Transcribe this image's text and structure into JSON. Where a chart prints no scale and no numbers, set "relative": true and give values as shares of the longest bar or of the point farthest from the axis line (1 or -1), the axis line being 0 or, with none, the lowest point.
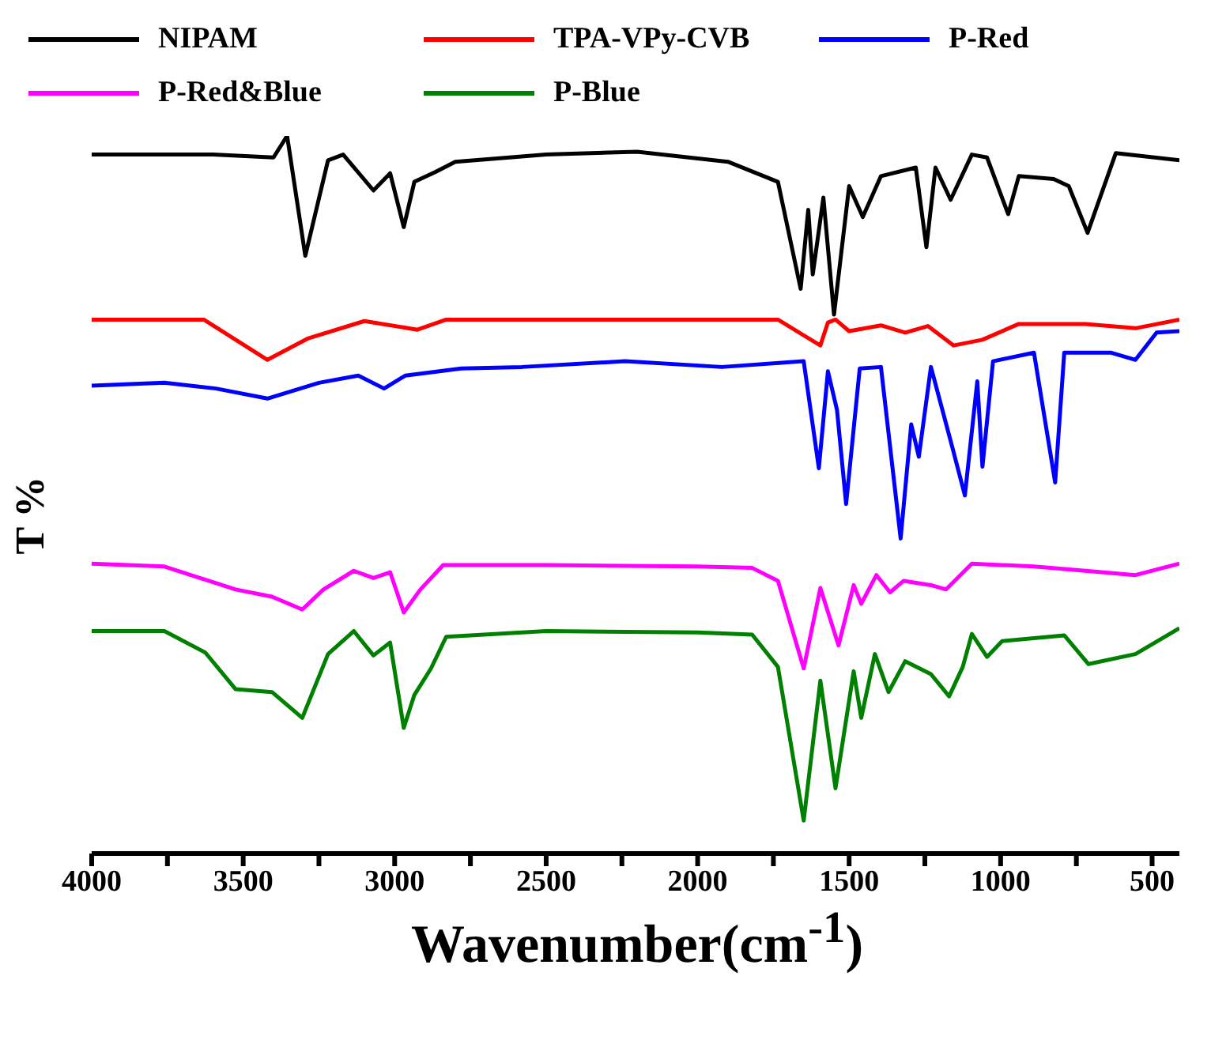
{
  "chart_data": {
    "type": "line",
    "relative": true,
    "xlabel": "Wavenumber(cm$^{-1}$)",
    "ylabel": "T %",
    "legend": "top",
    "marker": "none",
    "line_style": "solid",
    "xlim": [
      4000,
      410
    ],
    "xticks": [
      4000,
      {
        "value": 3750,
        "label": null
      },
      3500,
      {
        "value": 3250,
        "label": null
      },
      3000,
      {
        "value": 2750,
        "label": null
      },
      2500,
      {
        "value": 2250,
        "label": null
      },
      2000,
      {
        "value": 1750,
        "label": null
      },
      1500,
      {
        "value": 1250,
        "label": null
      },
      1000,
      {
        "value": 750,
        "label": null
      },
      500
    ],
    "series": [
      {
        "name": "NIPAM",
        "color": "#000000",
        "x": [
          4000,
          3800,
          3600,
          3400,
          3355,
          3295,
          3220,
          3170,
          3070,
          3015,
          2970,
          2935,
          2865,
          2800,
          2500,
          2200,
          1900,
          1735,
          1660,
          1635,
          1620,
          1585,
          1550,
          1500,
          1455,
          1395,
          1280,
          1245,
          1215,
          1165,
          1095,
          1045,
          975,
          940,
          825,
          775,
          713,
          620,
          410
        ],
        "values": [
          0.974,
          0.974,
          0.974,
          0.97,
          1,
          0.833,
          0.966,
          0.974,
          0.924,
          0.948,
          0.873,
          0.936,
          0.95,
          0.964,
          0.974,
          0.978,
          0.964,
          0.936,
          0.787,
          0.897,
          0.807,
          0.914,
          0.751,
          0.93,
          0.887,
          0.944,
          0.956,
          0.845,
          0.956,
          0.911,
          0.974,
          0.97,
          0.891,
          0.944,
          0.94,
          0.93,
          0.865,
          0.976,
          0.966
        ]
      },
      {
        "name": "TPA-VPy-CVB",
        "color": "#ff0000",
        "x": [
          4000,
          3800,
          3630,
          3420,
          3285,
          3100,
          2925,
          2830,
          2500,
          2000,
          1735,
          1595,
          1570,
          1545,
          1500,
          1395,
          1315,
          1240,
          1155,
          1060,
          940,
          720,
          555,
          410
        ],
        "values": [
          0.744,
          0.744,
          0.744,
          0.688,
          0.718,
          0.742,
          0.73,
          0.744,
          0.744,
          0.744,
          0.744,
          0.708,
          0.74,
          0.744,
          0.728,
          0.736,
          0.726,
          0.735,
          0.708,
          0.716,
          0.738,
          0.738,
          0.732,
          0.744
        ]
      },
      {
        "name": "P-Red",
        "color": "#0000ff",
        "x": [
          4000,
          3760,
          3590,
          3420,
          3250,
          3120,
          3035,
          2965,
          2780,
          2580,
          2240,
          1920,
          1650,
          1600,
          1570,
          1540,
          1510,
          1465,
          1395,
          1330,
          1295,
          1270,
          1230,
          1160,
          1118,
          1077,
          1060,
          1025,
          890,
          820,
          790,
          637,
          555,
          485,
          410
        ],
        "values": [
          0.652,
          0.656,
          0.648,
          0.634,
          0.656,
          0.666,
          0.648,
          0.666,
          0.676,
          0.678,
          0.686,
          0.678,
          0.686,
          0.537,
          0.672,
          0.618,
          0.487,
          0.676,
          0.678,
          0.439,
          0.598,
          0.553,
          0.678,
          0.567,
          0.499,
          0.658,
          0.539,
          0.686,
          0.698,
          0.517,
          0.698,
          0.698,
          0.688,
          0.726,
          0.728
        ]
      },
      {
        "name": "P-Red&Blue",
        "color": "#ff00ff",
        "x": [
          4000,
          3760,
          3525,
          3405,
          3305,
          3235,
          3135,
          3070,
          3015,
          2970,
          2915,
          2840,
          2500,
          2000,
          1820,
          1735,
          1650,
          1595,
          1535,
          1485,
          1460,
          1410,
          1365,
          1320,
          1230,
          1180,
          1095,
          890,
          720,
          555,
          410
        ],
        "values": [
          0.404,
          0.4,
          0.368,
          0.358,
          0.34,
          0.368,
          0.394,
          0.384,
          0.392,
          0.336,
          0.368,
          0.402,
          0.402,
          0.4,
          0.398,
          0.38,
          0.258,
          0.37,
          0.29,
          0.374,
          0.348,
          0.388,
          0.364,
          0.38,
          0.374,
          0.368,
          0.404,
          0.4,
          0.394,
          0.388,
          0.404
        ]
      },
      {
        "name": "P-Blue",
        "color": "#008000",
        "x": [
          4000,
          3760,
          3625,
          3525,
          3405,
          3305,
          3220,
          3135,
          3070,
          3015,
          2970,
          2935,
          2880,
          2830,
          2500,
          2000,
          1820,
          1735,
          1650,
          1595,
          1545,
          1485,
          1460,
          1415,
          1370,
          1315,
          1230,
          1170,
          1125,
          1095,
          1045,
          995,
          790,
          710,
          555,
          410
        ],
        "values": [
          0.31,
          0.31,
          0.28,
          0.229,
          0.225,
          0.189,
          0.278,
          0.31,
          0.276,
          0.294,
          0.175,
          0.221,
          0.258,
          0.302,
          0.31,
          0.308,
          0.305,
          0.26,
          0.046,
          0.241,
          0.091,
          0.254,
          0.189,
          0.278,
          0.225,
          0.268,
          0.25,
          0.219,
          0.26,
          0.306,
          0.274,
          0.296,
          0.304,
          0.264,
          0.278,
          0.314
        ]
      }
    ]
  }
}
